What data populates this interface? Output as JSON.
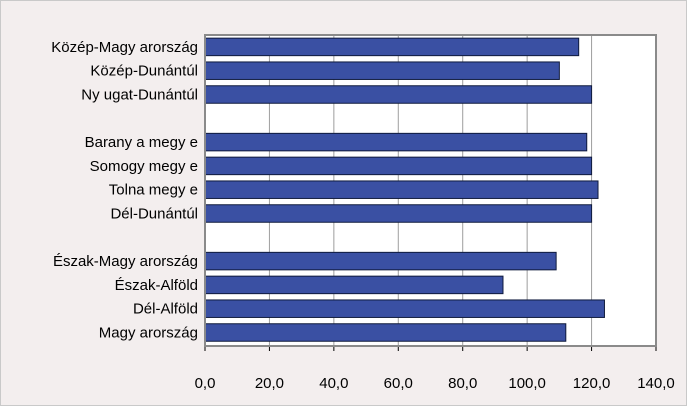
{
  "chart_data": {
    "type": "bar",
    "orientation": "horizontal",
    "categories": [
      "Közép-Magy arország",
      "Közép-Dunántúl",
      "Ny ugat-Dunántúl",
      "",
      "Barany a megy e",
      "Somogy megy e",
      "Tolna megy e",
      "Dél-Dunántúl",
      "",
      "Észak-Magy arország",
      "Észak-Alföld",
      "Dél-Alföld",
      "Magy arország"
    ],
    "values": [
      116.0,
      110.0,
      120.0,
      null,
      118.5,
      120.0,
      122.0,
      120.0,
      null,
      109.0,
      92.5,
      124.0,
      112.0
    ],
    "xlim": [
      0,
      140
    ],
    "xticks": [
      "0,0",
      "20,0",
      "40,0",
      "60,0",
      "80,0",
      "100,0",
      "120,0",
      "140,0"
    ],
    "grid": true,
    "legend": "none",
    "colors": {
      "bar": "#3a50a3",
      "bar_edge": "#0f1a3d",
      "plot_bg": "#ffffff",
      "frame_bg": "#f3eeee",
      "grid": "#9e9e9e",
      "plot_border": "#8a8a8a"
    }
  }
}
